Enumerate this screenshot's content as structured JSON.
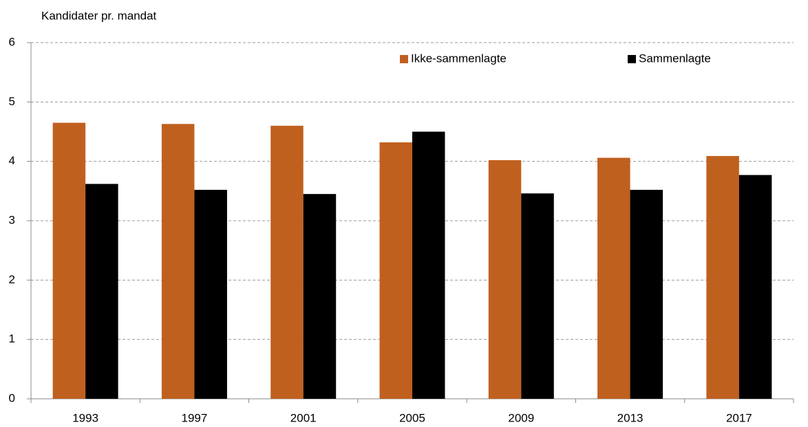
{
  "chart_data": {
    "type": "bar",
    "y_label": "Kandidater pr. mandat",
    "categories": [
      "1993",
      "1997",
      "2001",
      "2005",
      "2009",
      "2013",
      "2017"
    ],
    "series": [
      {
        "name": "Ikke-sammenlagte",
        "color": "#c0601f",
        "values": [
          4.65,
          4.63,
          4.6,
          4.32,
          4.02,
          4.06,
          4.09
        ]
      },
      {
        "name": "Sammenlagte",
        "color": "#000000",
        "values": [
          3.62,
          3.52,
          3.45,
          4.5,
          3.46,
          3.52,
          3.77
        ]
      }
    ],
    "ylim": [
      0,
      6
    ],
    "yticks": [
      0,
      1,
      2,
      3,
      4,
      5,
      6
    ],
    "grid": true,
    "legend": "top"
  }
}
